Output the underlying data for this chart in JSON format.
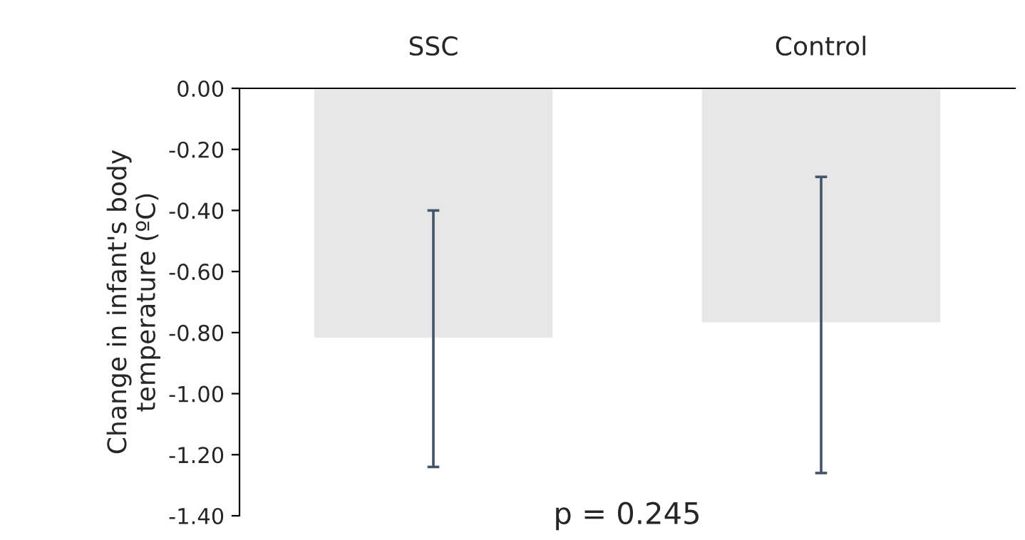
{
  "chart_data": {
    "type": "bar",
    "ylabel": "Change in infant's body temperature (ºC)",
    "categories": [
      "SSC",
      "Control"
    ],
    "values": [
      -0.82,
      -0.77
    ],
    "color": "#e7e7e7",
    "errors": [
      [
        -1.24,
        -0.4
      ],
      [
        -1.26,
        -0.29
      ]
    ],
    "ylim": [
      -1.4,
      0
    ],
    "yticks": [
      {
        "value": 0,
        "label": "0.00"
      },
      {
        "value": -0.2,
        "label": "-0.20"
      },
      {
        "value": -0.4,
        "label": "-0.40"
      },
      {
        "value": -0.6,
        "label": "-0.60"
      },
      {
        "value": -0.8,
        "label": "-0.80"
      },
      {
        "value": -1.0,
        "label": "-1.00"
      },
      {
        "value": -1.2,
        "label": "-1.20"
      },
      {
        "value": -1.4,
        "label": "-1.40"
      }
    ],
    "grid": false,
    "legend": false,
    "annotations": [
      "p = 0.245"
    ]
  }
}
